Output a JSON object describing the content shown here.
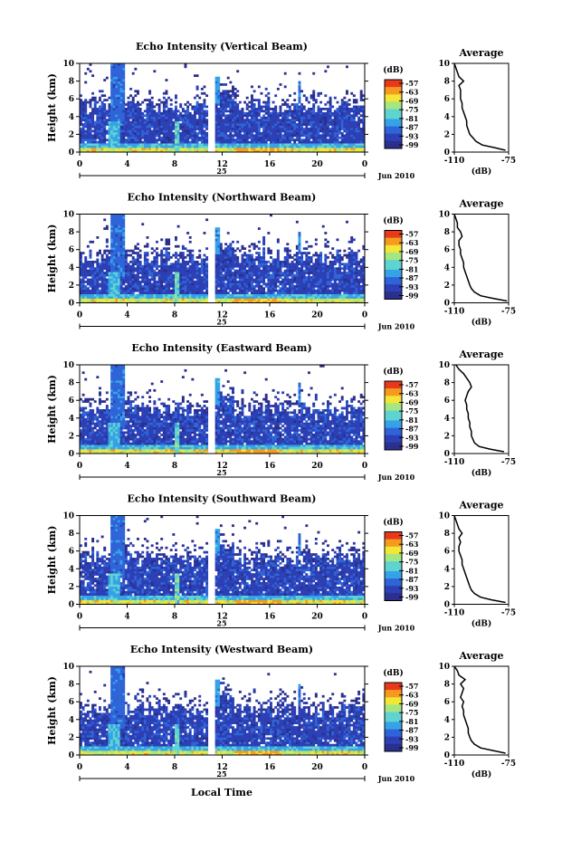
{
  "figure": {
    "xlabel_bottom": "Local Time",
    "colorbar_unit": "(dB)",
    "colorbar_ticks": [
      "-57",
      "-63",
      "-69",
      "-75",
      "-81",
      "-87",
      "-93",
      "-99"
    ],
    "ylabel": "Height (km)",
    "date_number": "25",
    "date_label": "Jun 2010",
    "profile_title": "Average",
    "profile_xlabel": "(dB)"
  },
  "colors": {
    "colormap": [
      "#2a2f8c",
      "#2c3fb4",
      "#2f64d8",
      "#35a2e8",
      "#5fd3d0",
      "#a4e680",
      "#f2e637",
      "#f59a1f",
      "#e8391b"
    ]
  },
  "chart_data": [
    {
      "type": "heatmap",
      "title": "Echo Intensity (Vertical Beam)",
      "ylabel": "Height (km)",
      "ylim": [
        0,
        10
      ],
      "yticks": [
        "0",
        "2",
        "4",
        "6",
        "8",
        "10"
      ],
      "xlim": [
        0,
        24
      ],
      "xticks": [
        "0",
        "4",
        "8",
        "12",
        "16",
        "20",
        "0"
      ],
      "colorbar": {
        "unit": "(dB)",
        "range": [
          -99,
          -57
        ],
        "ticks": [
          "-57",
          "-63",
          "-69",
          "-75",
          "-81",
          "-87",
          "-93",
          "-99"
        ]
      },
      "profile": {
        "title": "Average",
        "xlabel": "(dB)",
        "xlim": [
          -110,
          -75
        ],
        "xticks": [
          "-110",
          "-75"
        ],
        "yticks": [
          "0",
          "2",
          "4",
          "6",
          "8",
          "10"
        ],
        "heights": [
          0.2,
          0.5,
          0.8,
          1.2,
          1.6,
          2.0,
          2.5,
          3.0,
          3.5,
          4.0,
          4.5,
          5.0,
          5.5,
          6.0,
          6.5,
          7.0,
          7.5,
          8.0,
          8.5,
          9.0,
          9.5,
          10.0
        ],
        "values": [
          -77,
          -84,
          -92,
          -96,
          -98,
          -100,
          -101,
          -102,
          -102,
          -103,
          -104,
          -105,
          -105,
          -106,
          -106,
          -106,
          -107,
          -104,
          -107,
          -108,
          -109,
          -110
        ]
      }
    },
    {
      "type": "heatmap",
      "title": "Echo Intensity (Northward Beam)",
      "ylabel": "Height (km)",
      "ylim": [
        0,
        10
      ],
      "yticks": [
        "0",
        "2",
        "4",
        "6",
        "8",
        "10"
      ],
      "xlim": [
        0,
        24
      ],
      "xticks": [
        "0",
        "4",
        "8",
        "12",
        "16",
        "20",
        "0"
      ],
      "colorbar": {
        "unit": "(dB)",
        "range": [
          -99,
          -57
        ],
        "ticks": [
          "-57",
          "-63",
          "-69",
          "-75",
          "-81",
          "-87",
          "-93",
          "-99"
        ]
      },
      "profile": {
        "title": "Average",
        "xlabel": "(dB)",
        "xlim": [
          -110,
          -75
        ],
        "xticks": [
          "-110",
          "-75"
        ],
        "yticks": [
          "0",
          "2",
          "4",
          "6",
          "8",
          "10"
        ],
        "heights": [
          0.2,
          0.5,
          0.8,
          1.2,
          1.6,
          2.0,
          2.5,
          3.0,
          3.5,
          4.0,
          4.5,
          5.0,
          5.5,
          6.0,
          6.5,
          7.0,
          7.5,
          8.0,
          8.5,
          9.0,
          9.5,
          10.0
        ],
        "values": [
          -76,
          -85,
          -93,
          -97,
          -99,
          -100,
          -101,
          -102,
          -103,
          -104,
          -104,
          -105,
          -106,
          -106,
          -107,
          -107,
          -105,
          -106,
          -108,
          -108,
          -109,
          -110
        ]
      }
    },
    {
      "type": "heatmap",
      "title": "Echo Intensity (Eastward Beam)",
      "ylabel": "Height (km)",
      "ylim": [
        0,
        10
      ],
      "yticks": [
        "0",
        "2",
        "4",
        "6",
        "8",
        "10"
      ],
      "xlim": [
        0,
        24
      ],
      "xticks": [
        "0",
        "4",
        "8",
        "12",
        "16",
        "20",
        "0"
      ],
      "colorbar": {
        "unit": "(dB)",
        "range": [
          -99,
          -57
        ],
        "ticks": [
          "-57",
          "-63",
          "-69",
          "-75",
          "-81",
          "-87",
          "-93",
          "-99"
        ]
      },
      "profile": {
        "title": "Average",
        "xlabel": "(dB)",
        "xlim": [
          -110,
          -75
        ],
        "xticks": [
          "-110",
          "-75"
        ],
        "yticks": [
          "0",
          "2",
          "4",
          "6",
          "8",
          "10"
        ],
        "heights": [
          0.2,
          0.5,
          0.8,
          1.2,
          1.6,
          2.0,
          2.5,
          3.0,
          3.5,
          4.0,
          4.5,
          5.0,
          5.5,
          6.0,
          6.5,
          7.0,
          7.5,
          8.0,
          8.5,
          9.0,
          9.5,
          10.0
        ],
        "values": [
          -78,
          -87,
          -94,
          -97,
          -98,
          -99,
          -99,
          -100,
          -100,
          -101,
          -101,
          -102,
          -102,
          -103,
          -102,
          -101,
          -99,
          -100,
          -102,
          -104,
          -107,
          -109
        ]
      }
    },
    {
      "type": "heatmap",
      "title": "Echo Intensity (Southward Beam)",
      "ylabel": "Height (km)",
      "ylim": [
        0,
        10
      ],
      "yticks": [
        "0",
        "2",
        "4",
        "6",
        "8",
        "10"
      ],
      "xlim": [
        0,
        24
      ],
      "xticks": [
        "0",
        "4",
        "8",
        "12",
        "16",
        "20",
        "0"
      ],
      "colorbar": {
        "unit": "(dB)",
        "range": [
          -99,
          -57
        ],
        "ticks": [
          "-57",
          "-63",
          "-69",
          "-75",
          "-81",
          "-87",
          "-93",
          "-99"
        ]
      },
      "profile": {
        "title": "Average",
        "xlabel": "(dB)",
        "xlim": [
          -110,
          -75
        ],
        "xticks": [
          "-110",
          "-75"
        ],
        "yticks": [
          "0",
          "2",
          "4",
          "6",
          "8",
          "10"
        ],
        "heights": [
          0.2,
          0.5,
          0.8,
          1.2,
          1.6,
          2.0,
          2.5,
          3.0,
          3.5,
          4.0,
          4.5,
          5.0,
          5.5,
          6.0,
          6.5,
          7.0,
          7.5,
          8.0,
          8.5,
          9.0,
          9.5,
          10.0
        ],
        "values": [
          -77,
          -86,
          -93,
          -97,
          -99,
          -100,
          -101,
          -102,
          -103,
          -104,
          -105,
          -105,
          -106,
          -107,
          -107,
          -106,
          -107,
          -105,
          -107,
          -108,
          -109,
          -110
        ]
      }
    },
    {
      "type": "heatmap",
      "title": "Echo Intensity (Westward Beam)",
      "ylabel": "Height (km)",
      "ylim": [
        0,
        10
      ],
      "yticks": [
        "0",
        "2",
        "4",
        "6",
        "8",
        "10"
      ],
      "xlim": [
        0,
        24
      ],
      "xticks": [
        "0",
        "4",
        "8",
        "12",
        "16",
        "20",
        "0"
      ],
      "colorbar": {
        "unit": "(dB)",
        "range": [
          -99,
          -57
        ],
        "ticks": [
          "-57",
          "-63",
          "-69",
          "-75",
          "-81",
          "-87",
          "-93",
          "-99"
        ]
      },
      "profile": {
        "title": "Average",
        "xlabel": "(dB)",
        "xlim": [
          -110,
          -75
        ],
        "xticks": [
          "-110",
          "-75"
        ],
        "yticks": [
          "0",
          "2",
          "4",
          "6",
          "8",
          "10"
        ],
        "heights": [
          0.2,
          0.5,
          0.8,
          1.2,
          1.6,
          2.0,
          2.5,
          3.0,
          3.5,
          4.0,
          4.5,
          5.0,
          5.5,
          6.0,
          6.5,
          7.0,
          7.5,
          8.0,
          8.5,
          9.0,
          9.5,
          10.0
        ],
        "values": [
          -77,
          -85,
          -93,
          -97,
          -99,
          -100,
          -101,
          -101,
          -102,
          -103,
          -104,
          -104,
          -105,
          -104,
          -106,
          -105,
          -104,
          -106,
          -103,
          -107,
          -108,
          -110
        ]
      }
    }
  ]
}
